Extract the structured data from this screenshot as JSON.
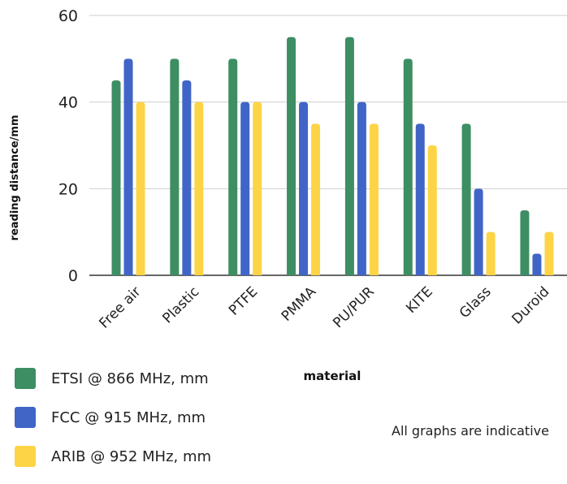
{
  "chart_data": {
    "type": "bar",
    "xlabel": "material",
    "ylabel": "reading distance/mm",
    "ylim": [
      0,
      60
    ],
    "yticks": [
      0,
      20,
      40,
      60
    ],
    "grid": true,
    "legend_position": "bottom-left",
    "categories": [
      "Free air",
      "Plastic",
      "PTFE",
      "PMMA",
      "PU/PUR",
      "KITE",
      "Glass",
      "Duroid"
    ],
    "series": [
      {
        "name": "ETSI @ 866 MHz, mm",
        "color": "#3d8e63",
        "values": [
          45,
          50,
          50,
          55,
          55,
          50,
          35,
          15
        ]
      },
      {
        "name": "FCC @ 915 MHz, mm",
        "color": "#4065c7",
        "values": [
          50,
          45,
          40,
          40,
          40,
          35,
          20,
          5
        ]
      },
      {
        "name": "ARIB @ 952 MHz, mm",
        "color": "#fdd446",
        "values": [
          40,
          40,
          40,
          35,
          35,
          30,
          10,
          10
        ]
      }
    ]
  },
  "footnote": "All graphs are indicative"
}
